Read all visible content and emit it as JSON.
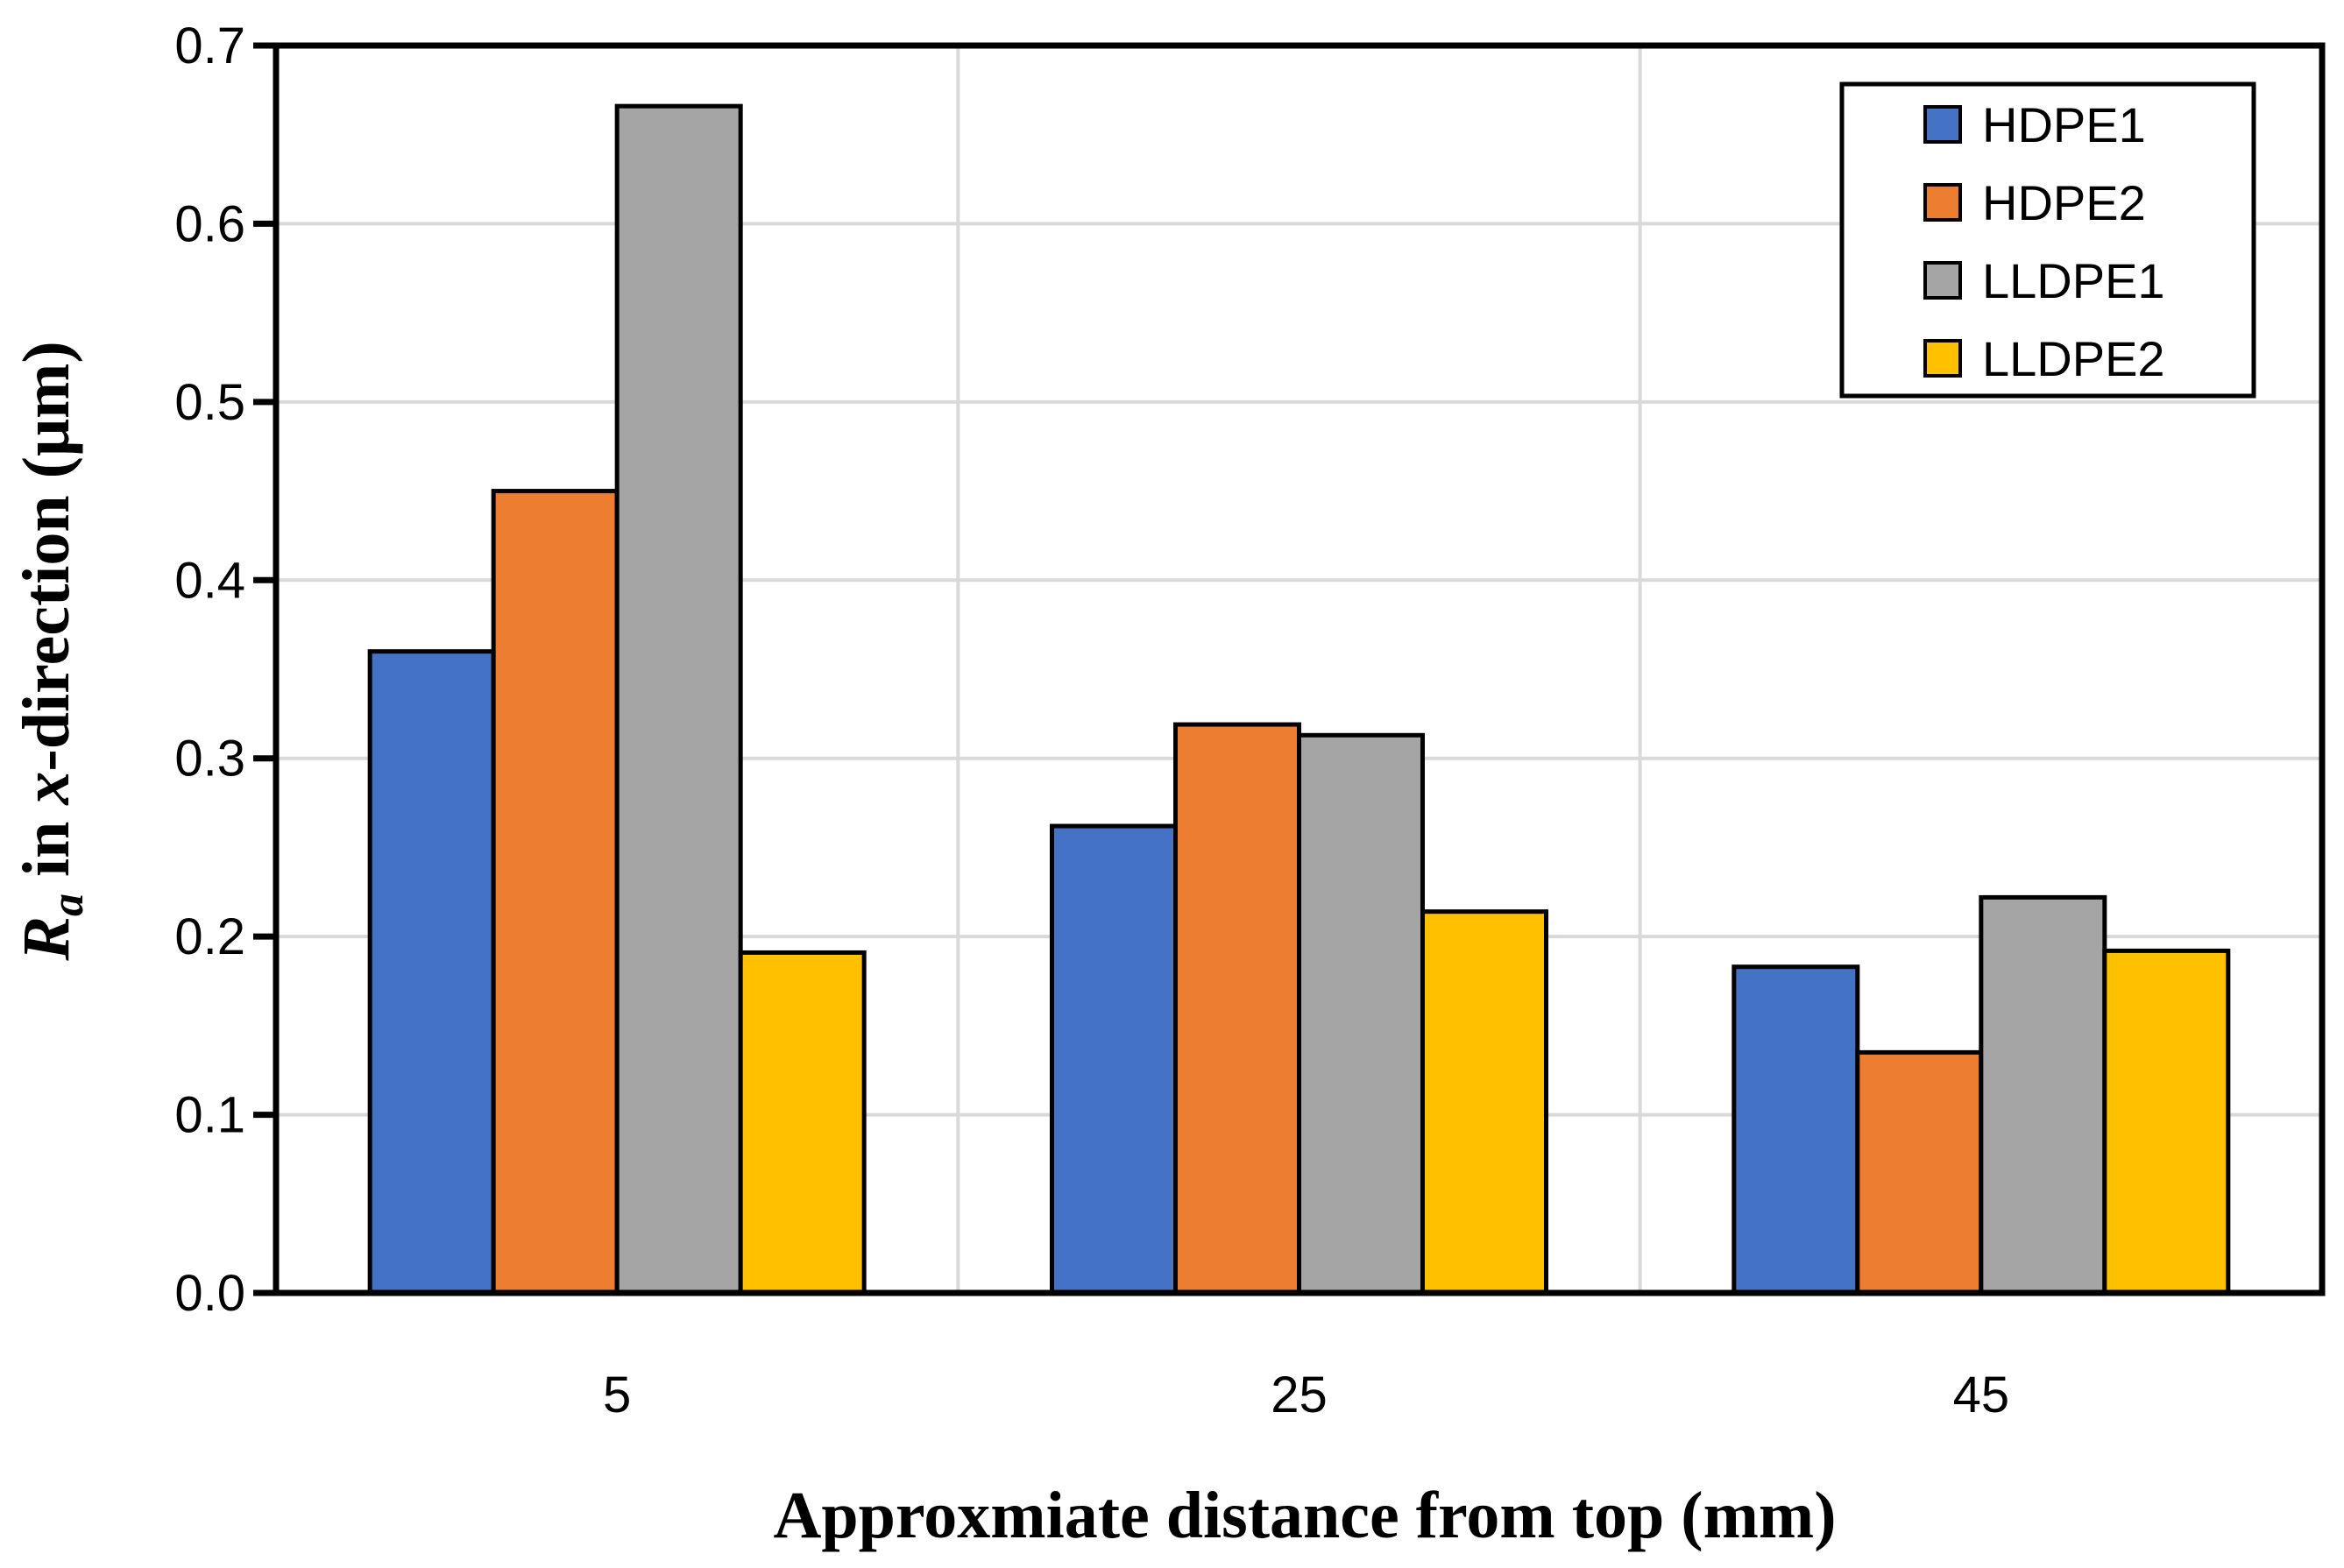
{
  "chart_data": {
    "type": "bar",
    "categories": [
      "5",
      "25",
      "45"
    ],
    "series": [
      {
        "name": "HDPE1",
        "color": "#4472C4",
        "values": [
          0.36,
          0.262,
          0.183
        ]
      },
      {
        "name": "HDPE2",
        "color": "#ED7D31",
        "values": [
          0.45,
          0.319,
          0.135
        ]
      },
      {
        "name": "LLDPE1",
        "color": "#A5A5A5",
        "values": [
          0.666,
          0.313,
          0.222
        ]
      },
      {
        "name": "LLDPE2",
        "color": "#FFC000",
        "values": [
          0.191,
          0.214,
          0.192
        ]
      }
    ],
    "xlabel": "Approxmiate distance from top (mm)",
    "ylabel": {
      "symbol": "R",
      "subscript": "a",
      "middle": " in ",
      "italic_word": "x",
      "rest": "-direction (μm)"
    },
    "ylim": [
      0,
      0.7
    ],
    "yticks": [
      "0.0",
      "0.1",
      "0.2",
      "0.3",
      "0.4",
      "0.5",
      "0.6",
      "0.7"
    ],
    "grid": true,
    "legend_position": "top-right"
  }
}
